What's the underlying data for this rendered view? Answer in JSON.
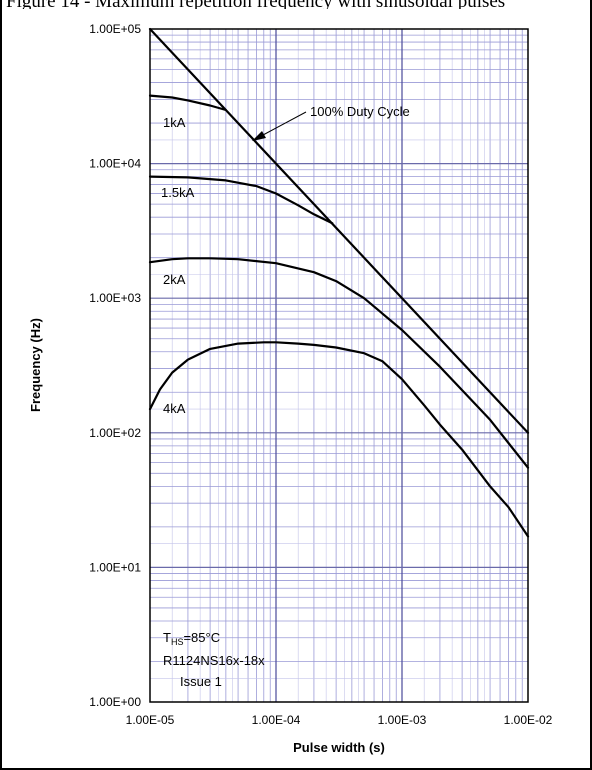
{
  "caption": "Figure 14 - Maximum repetition frequency with sinusoidal pulses",
  "chart_data": {
    "type": "line",
    "xscale": "log",
    "yscale": "log",
    "xlim": [
      1e-05,
      0.01
    ],
    "ylim": [
      1,
      100000
    ],
    "grid": true,
    "xlabel": "Pulse width (s)",
    "ylabel": "Frequency (Hz)",
    "x_tick_labels": [
      "1.00E-05",
      "1.00E-04",
      "1.00E-03",
      "1.00E-02"
    ],
    "y_tick_labels": [
      "1.00E+00",
      "1.00E+01",
      "1.00E+02",
      "1.00E+03",
      "1.00E+04",
      "1.00E+05"
    ],
    "series": [
      {
        "name": "100% Duty Cycle",
        "x": [
          1e-05,
          0.01
        ],
        "y": [
          100000,
          100
        ]
      },
      {
        "name": "1kA",
        "x": [
          1e-05,
          1.5e-05,
          2e-05,
          3e-05,
          4e-05
        ],
        "y": [
          32000,
          31000,
          29500,
          27000,
          25000
        ]
      },
      {
        "name": "1.5kA",
        "x": [
          1e-05,
          2e-05,
          4e-05,
          7e-05,
          0.0001,
          0.00015,
          0.0002,
          0.00028
        ],
        "y": [
          8000,
          7900,
          7500,
          6800,
          6000,
          4900,
          4200,
          3600
        ]
      },
      {
        "name": "2kA",
        "x": [
          1e-05,
          1.5e-05,
          2e-05,
          3e-05,
          5e-05,
          0.0001,
          0.0002,
          0.0003,
          0.0005,
          0.001,
          0.002,
          0.005,
          0.01
        ],
        "y": [
          1850,
          1950,
          1980,
          1980,
          1950,
          1820,
          1560,
          1340,
          1000,
          580,
          310,
          125,
          55
        ]
      },
      {
        "name": "4kA",
        "x": [
          1e-05,
          1.2e-05,
          1.5e-05,
          2e-05,
          3e-05,
          5e-05,
          8e-05,
          0.0001,
          0.00015,
          0.0002,
          0.0003,
          0.0005,
          0.0007,
          0.001,
          0.0015,
          0.002,
          0.003,
          0.005,
          0.007,
          0.01
        ],
        "y": [
          150,
          210,
          280,
          350,
          420,
          460,
          470,
          470,
          460,
          450,
          430,
          390,
          340,
          250,
          160,
          115,
          75,
          40,
          28,
          17
        ]
      }
    ],
    "annotation": "100% Duty Cycle",
    "notes": {
      "temp_main": "T",
      "temp_sub": "HS",
      "temp_tail": "=85°C",
      "part": "R1124NS16x-18x",
      "issue": "Issue 1"
    }
  }
}
